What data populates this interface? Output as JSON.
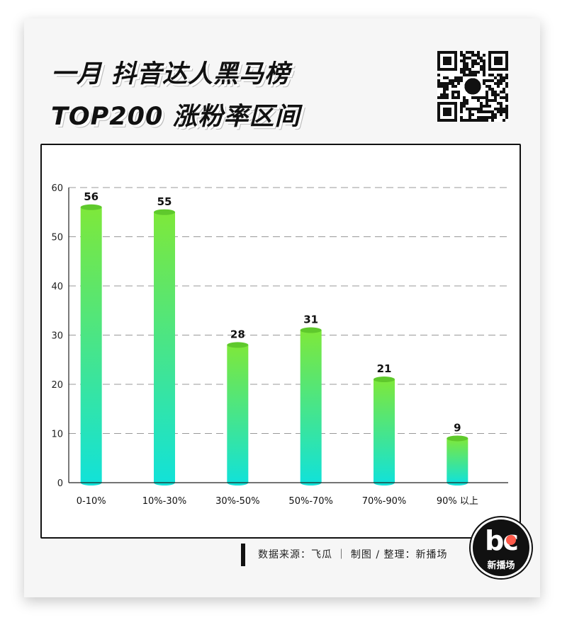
{
  "header": {
    "title_line1": "一月 抖音达人黑马榜",
    "title_line2": "TOP200 涨粉率区间"
  },
  "qr_code": {
    "icon": "qr-code-icon"
  },
  "chart_data": {
    "type": "bar",
    "categories": [
      "0-10%",
      "10%-30%",
      "30%-50%",
      "50%-70%",
      "70%-90%",
      "90% 以上"
    ],
    "values": [
      56,
      55,
      28,
      31,
      21,
      9
    ],
    "title": "",
    "xlabel": "",
    "ylabel": "",
    "ylim": [
      0,
      60
    ],
    "yticks": [
      0,
      10,
      20,
      30,
      40,
      50,
      60
    ],
    "grid": "horizontal-dashed",
    "legend": "none",
    "colors": {
      "bar_top": "#7ee83a",
      "bar_bottom": "#12e2d8",
      "grid": "#999999"
    }
  },
  "footer": {
    "source": "数据来源：飞瓜  ｜  制图 / 整理：新播场"
  },
  "logo": {
    "mark": "bc",
    "name": "新播场",
    "accent": "#ff5a4a"
  }
}
